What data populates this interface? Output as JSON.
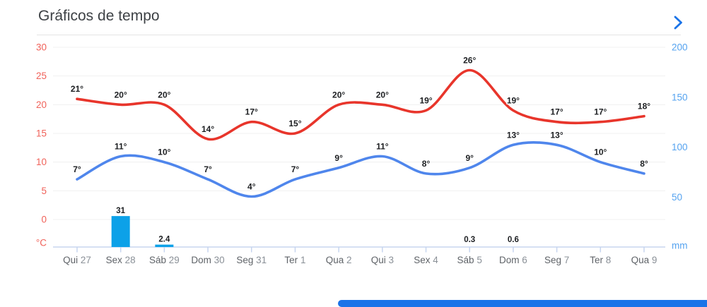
{
  "header": {
    "title": "Gráficos de tempo",
    "chevron_icon": "chevron-right"
  },
  "chart_data": {
    "type": "line+bar",
    "categories": [
      "Qui 27",
      "Sex 28",
      "Sáb 29",
      "Dom 30",
      "Seg 31",
      "Ter 1",
      "Qua 2",
      "Qui 3",
      "Sex 4",
      "Sáb 5",
      "Dom 6",
      "Seg 7",
      "Ter 8",
      "Qua 9"
    ],
    "series": [
      {
        "name": "temperatura-maxima",
        "type": "line",
        "unit": "°",
        "color": "#e8352b",
        "values": [
          21,
          20,
          20,
          14,
          17,
          15,
          20,
          20,
          19,
          26,
          19,
          17,
          17,
          18
        ]
      },
      {
        "name": "temperatura-minima",
        "type": "line",
        "unit": "°",
        "color": "#4f86ec",
        "values": [
          7,
          11,
          10,
          7,
          4,
          7,
          9,
          11,
          8,
          9,
          13,
          13,
          10,
          8
        ]
      },
      {
        "name": "precipitacao",
        "type": "bar",
        "unit": "mm",
        "color": "#0ca1e8",
        "values": [
          0,
          31,
          2.4,
          0,
          0,
          0,
          0,
          0,
          0,
          0.3,
          0.6,
          0,
          0,
          0
        ],
        "labels": [
          "",
          "31",
          "2.4",
          "",
          "",
          "",
          "",
          "",
          "",
          "0.3",
          "0.6",
          "",
          "",
          ""
        ]
      }
    ],
    "left_axis": {
      "unit_label": "°C",
      "ticks": [
        30,
        25,
        20,
        15,
        10,
        5,
        0
      ],
      "range": [
        0,
        30
      ],
      "color": "#f0625a"
    },
    "right_axis": {
      "unit_label": "mm",
      "ticks": [
        200,
        150,
        100,
        50
      ],
      "range": [
        0,
        200
      ],
      "color": "#55a3f0"
    },
    "grid": {
      "on": true,
      "color": "#f0f0f0"
    },
    "axis_line_color": "#c7d5ef",
    "x_label_colors": {
      "day": "#5f6368",
      "number": "#8a9097"
    },
    "point_label_color": "#1c1e21",
    "legend_position": "none"
  }
}
